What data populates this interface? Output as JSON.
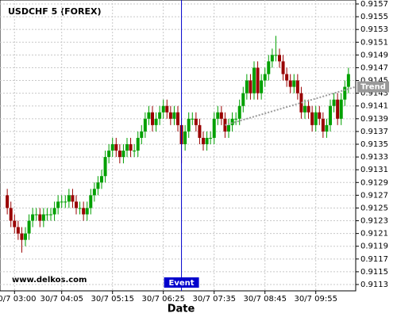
{
  "chart_data": {
    "type": "candlestick",
    "title": "USDCHF 5 (FOREX)",
    "xlabel": "Date",
    "watermark": "www.delkos.com",
    "x": [
      -10,
      -5,
      0,
      5,
      10,
      15,
      20,
      25,
      30,
      35,
      40,
      45,
      50,
      55,
      60,
      65,
      70,
      75,
      80,
      85,
      90,
      95,
      100,
      105,
      110,
      115,
      120,
      125,
      130,
      135,
      140,
      145,
      150,
      155,
      160,
      165,
      170,
      175,
      180,
      185,
      190,
      195,
      200,
      205,
      210,
      215,
      220,
      225,
      230,
      235,
      240,
      245,
      250,
      255,
      260,
      265,
      270,
      275,
      280,
      285,
      290,
      295,
      300,
      305,
      310,
      315,
      320,
      325,
      330,
      335,
      340,
      345,
      350,
      355,
      360,
      365,
      370,
      375,
      380,
      385,
      390,
      395,
      400,
      405,
      410,
      415,
      420,
      425,
      430,
      435,
      440,
      445,
      450,
      455,
      460
    ],
    "open": [
      0.9127,
      0.9125,
      0.9123,
      0.9122,
      0.9121,
      0.912,
      0.9121,
      0.9123,
      0.9124,
      0.9124,
      0.9123,
      0.9124,
      0.9124,
      0.9124,
      0.9125,
      0.9126,
      0.9126,
      0.9126,
      0.9127,
      0.9126,
      0.9125,
      0.9125,
      0.9124,
      0.9125,
      0.9127,
      0.9128,
      0.9129,
      0.913,
      0.9133,
      0.9134,
      0.9135,
      0.9134,
      0.9133,
      0.9134,
      0.9135,
      0.9134,
      0.9134,
      0.9136,
      0.9137,
      0.9139,
      0.914,
      0.9138,
      0.9139,
      0.914,
      0.9141,
      0.914,
      0.9139,
      0.914,
      0.9138,
      0.9135,
      0.9137,
      0.9139,
      0.9139,
      0.9138,
      0.9136,
      0.9135,
      0.9136,
      0.9136,
      0.9139,
      0.914,
      0.9139,
      0.9137,
      0.9138,
      0.9139,
      0.9139,
      0.9141,
      0.9143,
      0.9145,
      0.9143,
      0.9147,
      0.9143,
      0.9145,
      0.9146,
      0.9148,
      0.9149,
      0.9149,
      0.9148,
      0.9146,
      0.9145,
      0.9144,
      0.9145,
      0.9143,
      0.914,
      0.9141,
      0.914,
      0.9138,
      0.914,
      0.9139,
      0.9137,
      0.9138,
      0.9141,
      0.9142,
      0.9139,
      0.9142,
      0.9144
    ],
    "high": [
      0.9128,
      0.9126,
      0.9124,
      0.9123,
      0.9122,
      0.9122,
      0.9124,
      0.9125,
      0.9125,
      0.9125,
      0.9125,
      0.9125,
      0.9125,
      0.9126,
      0.9127,
      0.9127,
      0.9127,
      0.9128,
      0.9128,
      0.9127,
      0.9126,
      0.9126,
      0.9126,
      0.9128,
      0.9129,
      0.913,
      0.9131,
      0.9134,
      0.9135,
      0.9136,
      0.9136,
      0.9135,
      0.9135,
      0.9136,
      0.9136,
      0.9135,
      0.9137,
      0.9138,
      0.914,
      0.9141,
      0.9141,
      0.914,
      0.9141,
      0.9142,
      0.9142,
      0.9141,
      0.9141,
      0.9141,
      0.9139,
      0.9138,
      0.914,
      0.914,
      0.914,
      0.9139,
      0.9137,
      0.9137,
      0.9137,
      0.914,
      0.9141,
      0.9141,
      0.914,
      0.9139,
      0.914,
      0.914,
      0.9142,
      0.9144,
      0.9146,
      0.9146,
      0.9148,
      0.9148,
      0.9146,
      0.9147,
      0.9149,
      0.915,
      0.9152,
      0.915,
      0.9149,
      0.9147,
      0.9146,
      0.9146,
      0.9146,
      0.9144,
      0.9142,
      0.9142,
      0.9141,
      0.9141,
      0.9141,
      0.914,
      0.9139,
      0.9142,
      0.9143,
      0.9143,
      0.9143,
      0.9145,
      0.9147
    ],
    "low": [
      0.9124,
      0.9122,
      0.9121,
      0.912,
      0.9118,
      0.9119,
      0.912,
      0.9122,
      0.9123,
      0.9122,
      0.9122,
      0.9123,
      0.9123,
      0.9123,
      0.9124,
      0.9125,
      0.9125,
      0.9125,
      0.9125,
      0.9124,
      0.9124,
      0.9123,
      0.9123,
      0.9124,
      0.9126,
      0.9127,
      0.9128,
      0.9129,
      0.9132,
      0.9133,
      0.9133,
      0.9132,
      0.9132,
      0.9133,
      0.9133,
      0.9133,
      0.9133,
      0.9135,
      0.9136,
      0.9138,
      0.9137,
      0.9137,
      0.9138,
      0.9139,
      0.9139,
      0.9138,
      0.9138,
      0.9137,
      0.9132,
      0.9134,
      0.9136,
      0.9138,
      0.9137,
      0.9135,
      0.9134,
      0.9134,
      0.9135,
      0.9135,
      0.9138,
      0.9138,
      0.9136,
      0.9136,
      0.9137,
      0.9138,
      0.9138,
      0.914,
      0.9142,
      0.9142,
      0.9142,
      0.9142,
      0.9142,
      0.9144,
      0.9145,
      0.9147,
      0.9148,
      0.9147,
      0.9145,
      0.9144,
      0.9143,
      0.9143,
      0.9142,
      0.9139,
      0.9139,
      0.9139,
      0.9137,
      0.9137,
      0.9138,
      0.9136,
      0.9136,
      0.9137,
      0.914,
      0.9138,
      0.9138,
      0.9141,
      0.9143
    ],
    "close": [
      0.9125,
      0.9123,
      0.9122,
      0.9121,
      0.912,
      0.9121,
      0.9123,
      0.9124,
      0.9124,
      0.9123,
      0.9124,
      0.9124,
      0.9124,
      0.9125,
      0.9126,
      0.9126,
      0.9126,
      0.9127,
      0.9126,
      0.9125,
      0.9125,
      0.9124,
      0.9125,
      0.9127,
      0.9128,
      0.9129,
      0.913,
      0.9133,
      0.9134,
      0.9135,
      0.9134,
      0.9133,
      0.9134,
      0.9135,
      0.9134,
      0.9134,
      0.9136,
      0.9137,
      0.9139,
      0.914,
      0.9138,
      0.9139,
      0.914,
      0.9141,
      0.914,
      0.9139,
      0.914,
      0.9138,
      0.9135,
      0.9137,
      0.9139,
      0.9139,
      0.9138,
      0.9136,
      0.9135,
      0.9136,
      0.9136,
      0.9139,
      0.914,
      0.9139,
      0.9137,
      0.9138,
      0.9139,
      0.9139,
      0.9141,
      0.9143,
      0.9145,
      0.9143,
      0.9147,
      0.9143,
      0.9145,
      0.9146,
      0.9148,
      0.9149,
      0.9149,
      0.9148,
      0.9146,
      0.9145,
      0.9144,
      0.9145,
      0.9143,
      0.914,
      0.9141,
      0.914,
      0.9138,
      0.914,
      0.9139,
      0.9137,
      0.9138,
      0.9141,
      0.9142,
      0.9139,
      0.9142,
      0.9144,
      0.9146
    ],
    "up_color": "#00a000",
    "down_color": "#990000",
    "xlim": [
      -20,
      470
    ],
    "xticks": [
      {
        "value": 0,
        "label": "30/7 03:00"
      },
      {
        "value": 65,
        "label": "30/7 04:05"
      },
      {
        "value": 135,
        "label": "30/7 05:15"
      },
      {
        "value": 205,
        "label": "30/7 06:25"
      },
      {
        "value": 275,
        "label": "30/7 07:35"
      },
      {
        "value": 345,
        "label": "30/7 08:45"
      },
      {
        "value": 415,
        "label": "30/7 09:55"
      }
    ],
    "ylim": [
      0.9113,
      0.9157
    ],
    "yticks": [
      0.9113,
      0.9115,
      0.9117,
      0.9119,
      0.9121,
      0.9123,
      0.9125,
      0.9127,
      0.9129,
      0.9131,
      0.9133,
      0.9135,
      0.9137,
      0.9139,
      0.9141,
      0.9143,
      0.9145,
      0.9147,
      0.9149,
      0.9151,
      0.9153,
      0.9155,
      0.9157
    ],
    "grid": true,
    "event": {
      "label": "Event",
      "x": 230,
      "color": "#0000cc"
    },
    "trend": {
      "label": "Trend",
      "x": [
        290,
        470
      ],
      "y": [
        0.9138,
        0.9144
      ],
      "color": "#999999"
    }
  }
}
